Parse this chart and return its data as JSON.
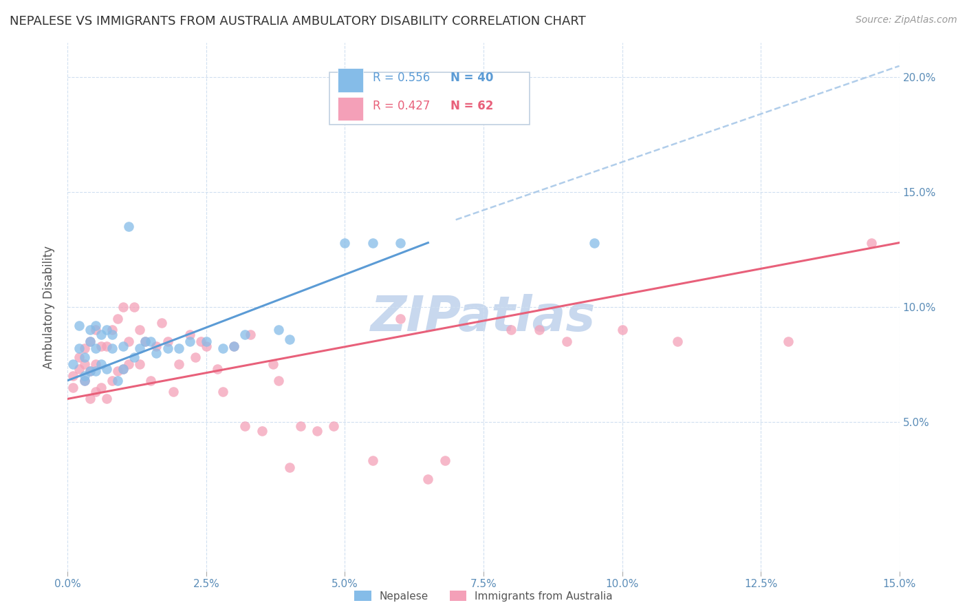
{
  "title": "NEPALESE VS IMMIGRANTS FROM AUSTRALIA AMBULATORY DISABILITY CORRELATION CHART",
  "source": "Source: ZipAtlas.com",
  "ylabel": "Ambulatory Disability",
  "xlim": [
    0.0,
    0.15
  ],
  "ylim": [
    -0.015,
    0.215
  ],
  "nepalese_R": 0.556,
  "nepalese_N": 40,
  "australia_R": 0.427,
  "australia_N": 62,
  "nepalese_color": "#85BCE8",
  "australia_color": "#F4A0B8",
  "nepalese_line_color": "#5B9BD5",
  "australia_line_color": "#E8607A",
  "dashed_line_color": "#A8C8E8",
  "watermark": "ZIPatlas",
  "watermark_color": "#C8D8EE",
  "nepalese_x": [
    0.001,
    0.002,
    0.002,
    0.003,
    0.003,
    0.003,
    0.004,
    0.004,
    0.004,
    0.005,
    0.005,
    0.005,
    0.006,
    0.006,
    0.007,
    0.007,
    0.008,
    0.008,
    0.009,
    0.01,
    0.01,
    0.011,
    0.012,
    0.013,
    0.014,
    0.015,
    0.016,
    0.018,
    0.02,
    0.022,
    0.025,
    0.028,
    0.03,
    0.032,
    0.038,
    0.04,
    0.05,
    0.055,
    0.06,
    0.095
  ],
  "nepalese_y": [
    0.075,
    0.092,
    0.082,
    0.07,
    0.078,
    0.068,
    0.072,
    0.085,
    0.09,
    0.072,
    0.082,
    0.092,
    0.075,
    0.088,
    0.073,
    0.09,
    0.082,
    0.088,
    0.068,
    0.073,
    0.083,
    0.135,
    0.078,
    0.082,
    0.085,
    0.085,
    0.08,
    0.082,
    0.082,
    0.085,
    0.085,
    0.082,
    0.083,
    0.088,
    0.09,
    0.086,
    0.128,
    0.128,
    0.128,
    0.128
  ],
  "australia_x": [
    0.001,
    0.001,
    0.002,
    0.002,
    0.003,
    0.003,
    0.003,
    0.004,
    0.004,
    0.004,
    0.005,
    0.005,
    0.005,
    0.006,
    0.006,
    0.007,
    0.007,
    0.008,
    0.008,
    0.009,
    0.009,
    0.01,
    0.01,
    0.011,
    0.011,
    0.012,
    0.013,
    0.013,
    0.014,
    0.015,
    0.016,
    0.017,
    0.018,
    0.019,
    0.02,
    0.022,
    0.023,
    0.024,
    0.025,
    0.027,
    0.028,
    0.03,
    0.032,
    0.033,
    0.035,
    0.037,
    0.038,
    0.04,
    0.042,
    0.045,
    0.048,
    0.055,
    0.06,
    0.065,
    0.068,
    0.08,
    0.085,
    0.09,
    0.1,
    0.11,
    0.13,
    0.145
  ],
  "australia_y": [
    0.07,
    0.065,
    0.073,
    0.078,
    0.068,
    0.075,
    0.082,
    0.06,
    0.072,
    0.085,
    0.063,
    0.075,
    0.09,
    0.065,
    0.083,
    0.06,
    0.083,
    0.068,
    0.09,
    0.072,
    0.095,
    0.073,
    0.1,
    0.075,
    0.085,
    0.1,
    0.075,
    0.09,
    0.085,
    0.068,
    0.083,
    0.093,
    0.085,
    0.063,
    0.075,
    0.088,
    0.078,
    0.085,
    0.083,
    0.073,
    0.063,
    0.083,
    0.048,
    0.088,
    0.046,
    0.075,
    0.068,
    0.03,
    0.048,
    0.046,
    0.048,
    0.033,
    0.095,
    0.025,
    0.033,
    0.09,
    0.09,
    0.085,
    0.09,
    0.085,
    0.085,
    0.128
  ],
  "nep_line_x": [
    0.0,
    0.065
  ],
  "nep_line_y": [
    0.068,
    0.128
  ],
  "aus_line_x": [
    0.0,
    0.15
  ],
  "aus_line_y": [
    0.06,
    0.128
  ],
  "dash_line_x": [
    0.07,
    0.15
  ],
  "dash_line_y": [
    0.138,
    0.205
  ],
  "x_ticks": [
    0.0,
    0.025,
    0.05,
    0.075,
    0.1,
    0.125,
    0.15
  ],
  "x_tick_labels": [
    "0.0%",
    "2.5%",
    "5.0%",
    "7.5%",
    "10.0%",
    "12.5%",
    "15.0%"
  ],
  "y_ticks": [
    0.05,
    0.1,
    0.15,
    0.2
  ],
  "y_tick_labels": [
    "5.0%",
    "10.0%",
    "15.0%",
    "20.0%"
  ],
  "tick_color": "#5B8DB8",
  "grid_color": "#D0DFF0",
  "title_color": "#333333",
  "ylabel_color": "#555555"
}
